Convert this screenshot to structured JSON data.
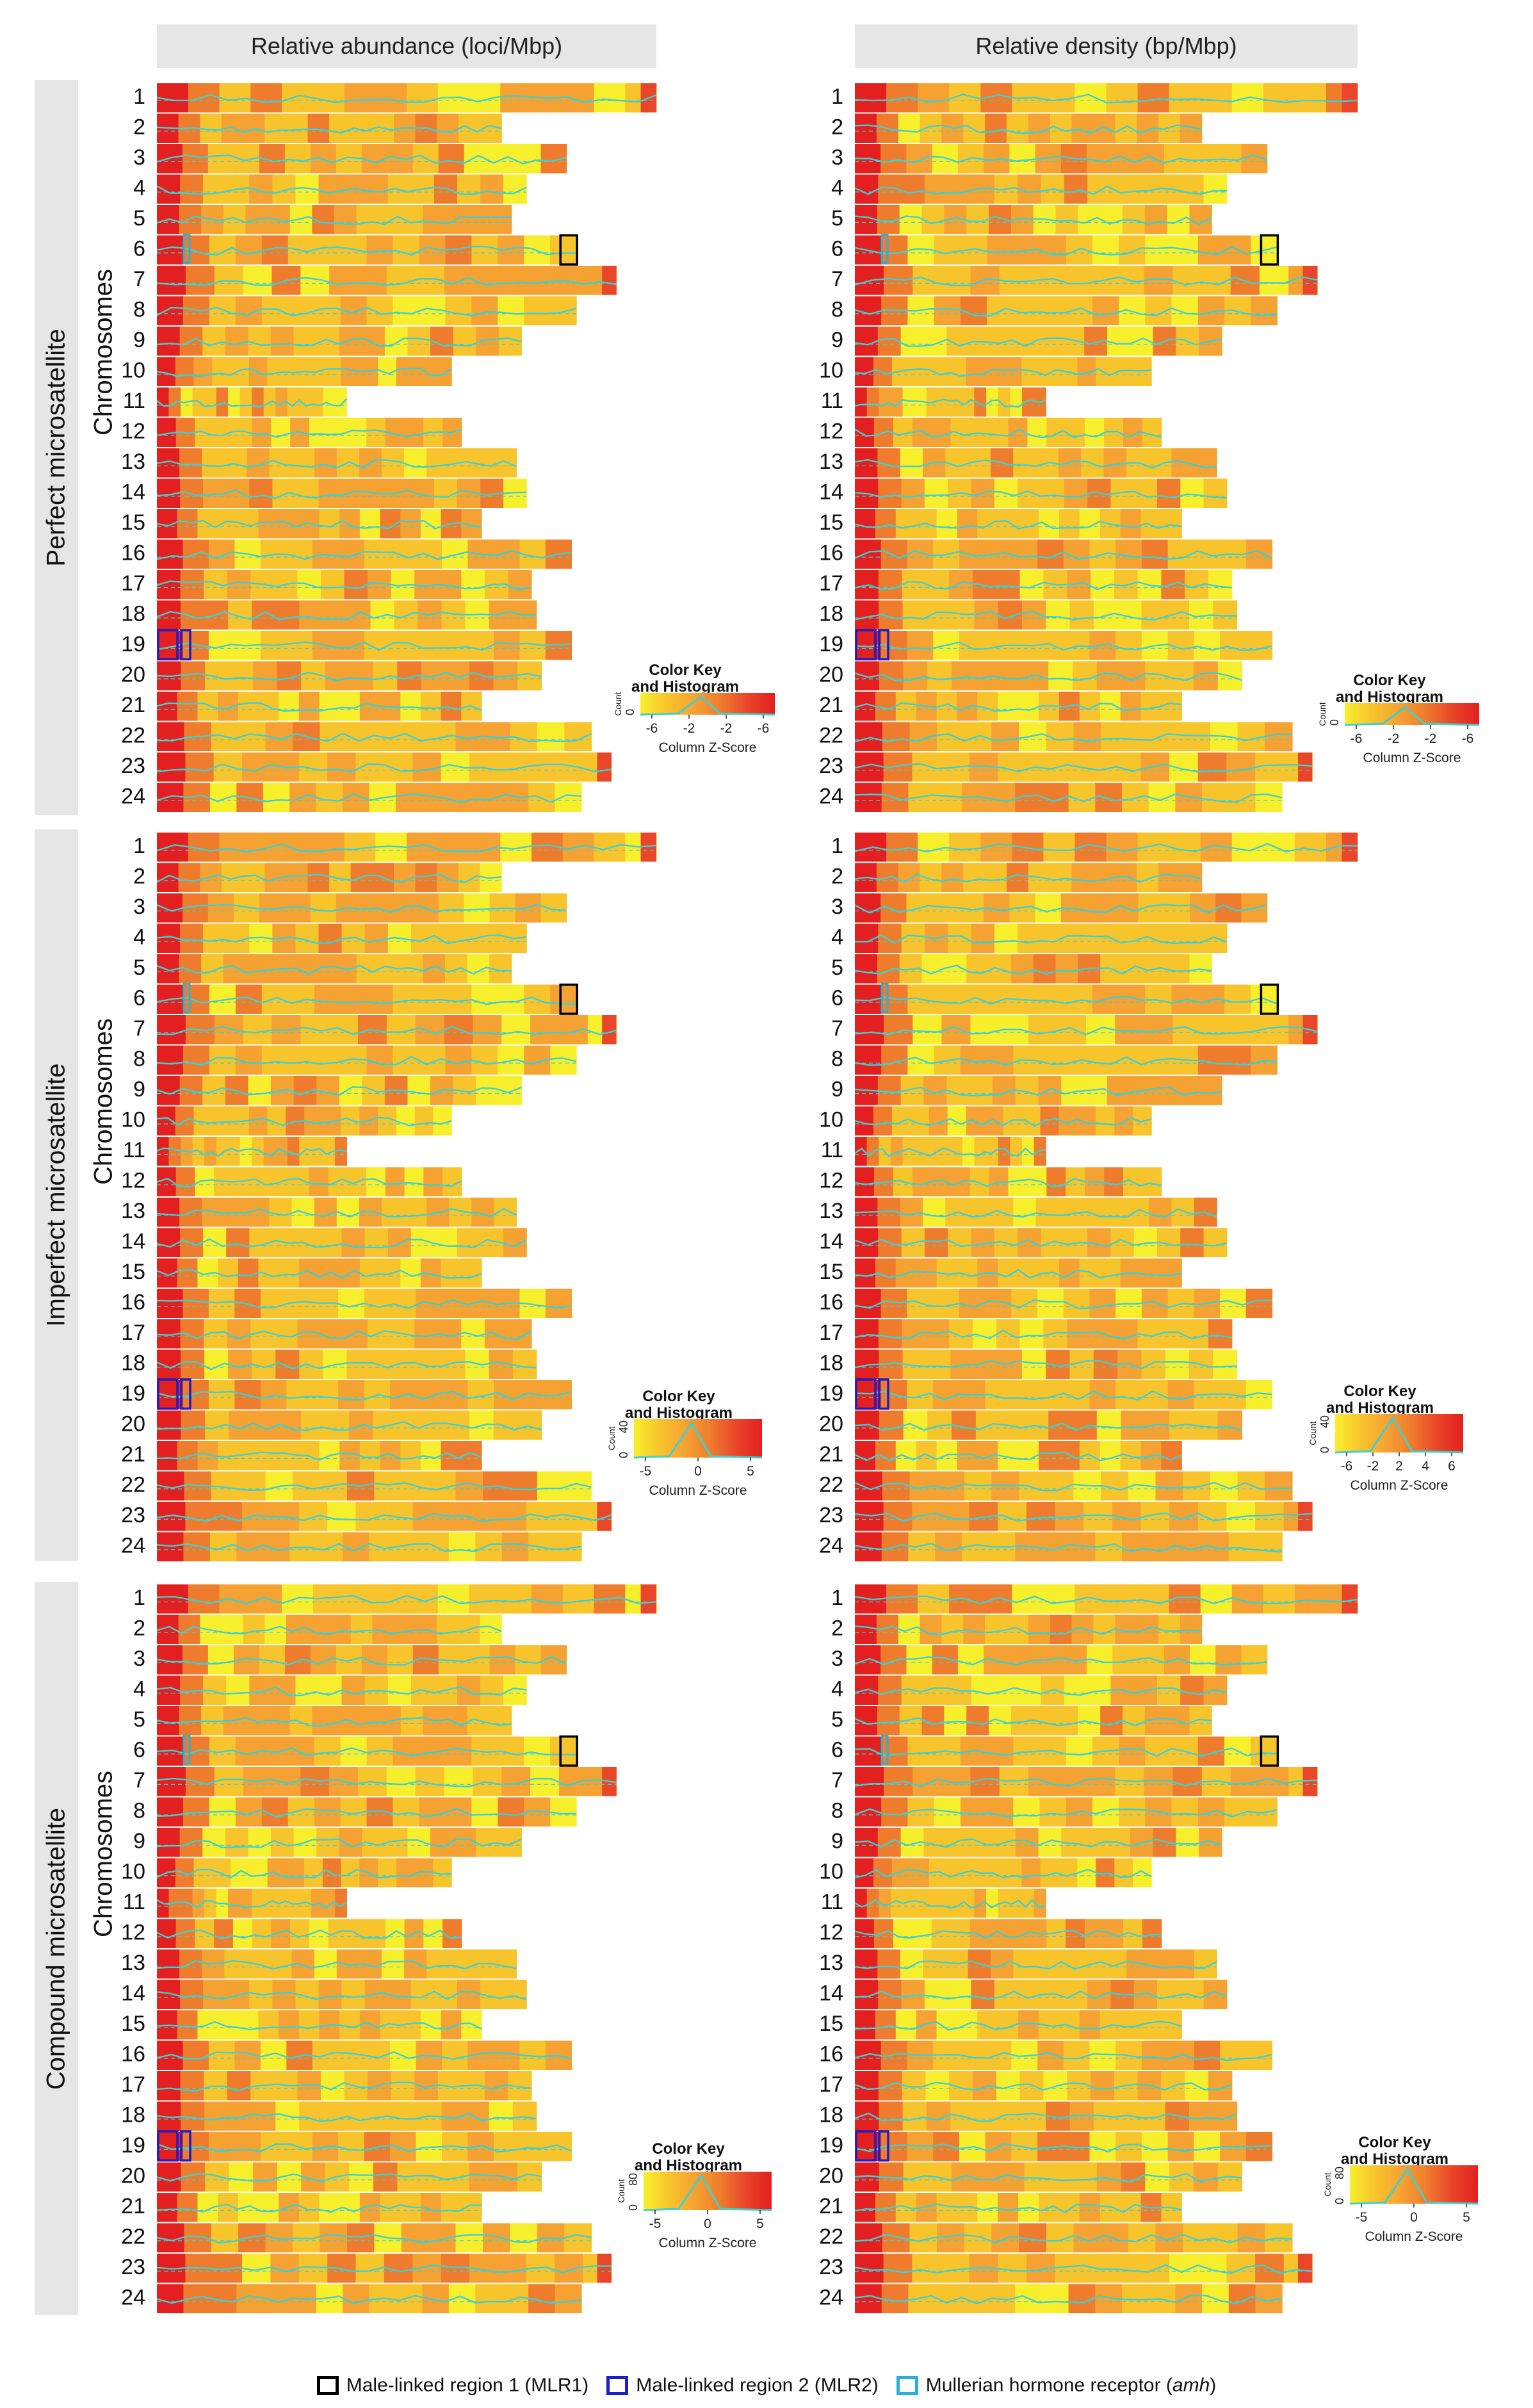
{
  "chart_data": {
    "type": "heatmap",
    "column_headers": [
      "Relative abundance (loci/Mbp)",
      "Relative density (bp/Mbp)"
    ],
    "row_groups": [
      "Perfect microsatellite",
      "Imperfect microsatellite",
      "Compound microsatellite"
    ],
    "ylabel": "Chromosomes",
    "chromosomes": [
      "1",
      "2",
      "3",
      "4",
      "5",
      "6",
      "7",
      "8",
      "9",
      "10",
      "11",
      "12",
      "13",
      "14",
      "15",
      "16",
      "17",
      "18",
      "19",
      "20",
      "21",
      "22",
      "23",
      "24"
    ],
    "chromosome_relative_length": [
      1.0,
      0.69,
      0.82,
      0.74,
      0.71,
      0.84,
      0.92,
      0.84,
      0.73,
      0.59,
      0.38,
      0.61,
      0.72,
      0.74,
      0.65,
      0.83,
      0.75,
      0.76,
      0.83,
      0.77,
      0.65,
      0.87,
      0.91,
      0.85
    ],
    "heatmap_palette": [
      "#f8ef2c",
      "#f8c42c",
      "#f5a233",
      "#ef7c2d",
      "#e8452a",
      "#e3201f"
    ],
    "histogram_line_color": "#3fd0d0",
    "color_keys": [
      {
        "title": "Color Key\nand Histogram",
        "count_label": "Count",
        "count_ticks": [
          "0"
        ],
        "x_ticks": [
          "-6",
          "-2",
          "-2",
          "-6"
        ],
        "xlabel": "Column Z-Score"
      },
      {
        "title": "Color Key\nand Histogram",
        "count_label": "Count",
        "count_ticks": [
          "0"
        ],
        "x_ticks": [
          "-6",
          "-2",
          "-2",
          "-6"
        ],
        "xlabel": "Column Z-Score"
      },
      {
        "title": "Color Key\nand Histogram",
        "count_label": "Count",
        "count_ticks": [
          "0",
          "40"
        ],
        "x_ticks": [
          "-5",
          "0",
          "5"
        ],
        "xlabel": "Column Z-Score"
      },
      {
        "title": "Color Key\nand Histogram",
        "count_label": "Count",
        "count_ticks": [
          "0",
          "40"
        ],
        "x_ticks": [
          "-6",
          "-2",
          "2",
          "4",
          "6"
        ],
        "xlabel": "Column Z-Score"
      },
      {
        "title": "Color Key\nand Histogram",
        "count_label": "Count",
        "count_ticks": [
          "0",
          "80"
        ],
        "x_ticks": [
          "-5",
          "0",
          "5"
        ],
        "xlabel": "Column Z-Score"
      },
      {
        "title": "Color Key\nand Histogram",
        "count_label": "Count",
        "count_ticks": [
          "0",
          "80"
        ],
        "x_ticks": [
          "-5",
          "0",
          "5"
        ],
        "xlabel": "Column Z-Score"
      }
    ],
    "highlight_regions": [
      {
        "name": "Male-linked region 1 (MLR1)",
        "color": "#000000",
        "chromosome": "6"
      },
      {
        "name": "Male-linked region 2 (MLR2)",
        "color": "#1c1cc8",
        "chromosome": "19"
      },
      {
        "name": "Mullerian hormone receptor (amh)",
        "color": "#2ab0d8",
        "chromosome": "6"
      }
    ]
  },
  "legend": {
    "items": [
      {
        "label": "Male-linked region 1 (MLR1)",
        "color": "#000000"
      },
      {
        "label": "Male-linked region 2 (MLR2)",
        "color": "#1c1cc8"
      },
      {
        "label_main": "Mullerian hormone receptor (",
        "label_italic": "amh",
        "label_end": ")",
        "color": "#2ab0d8"
      }
    ]
  }
}
